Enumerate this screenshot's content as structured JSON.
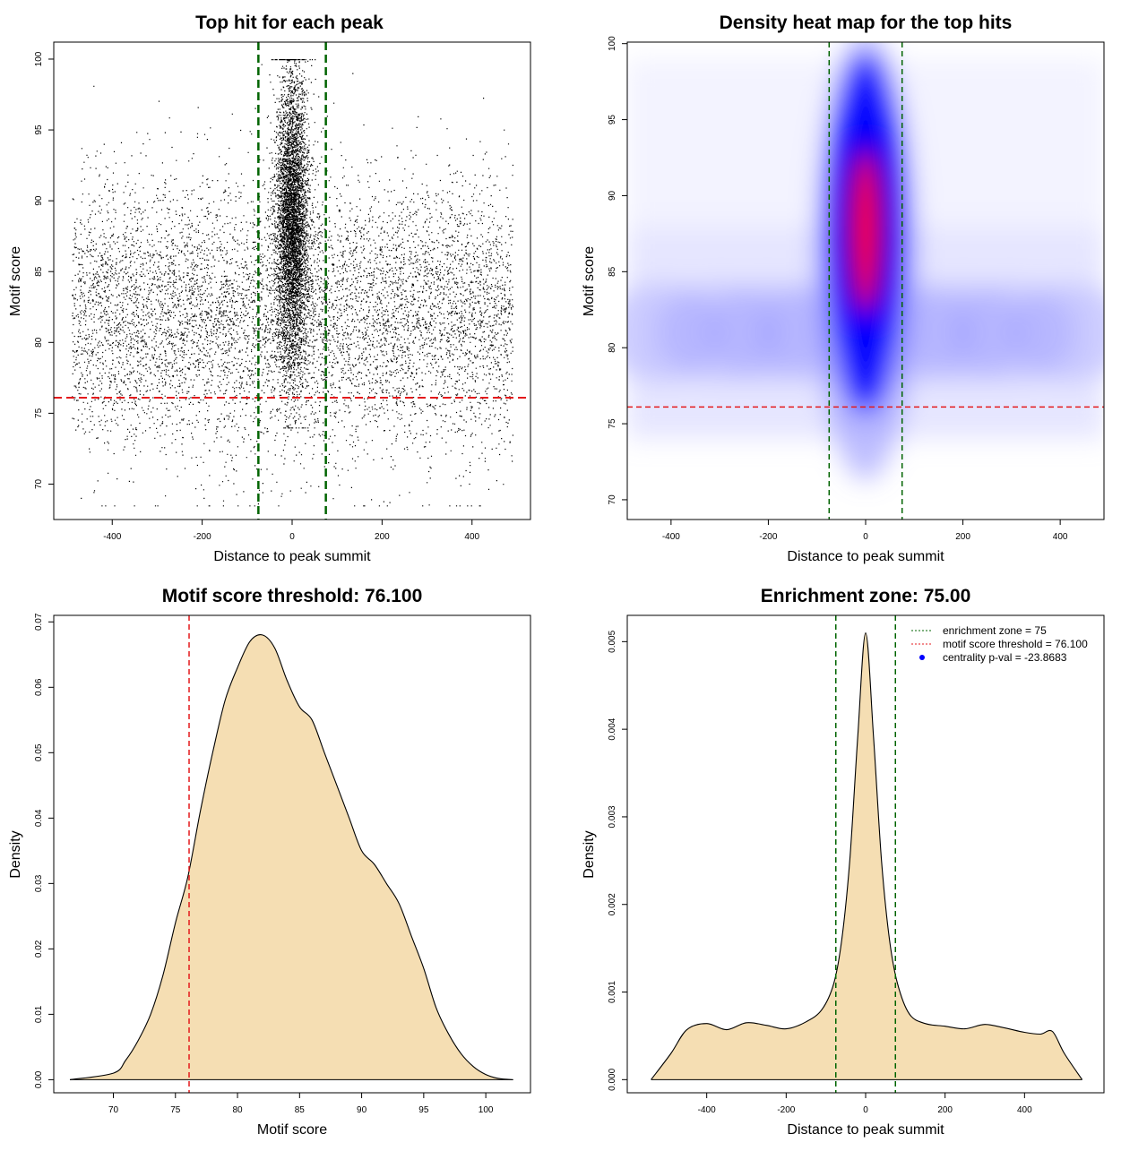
{
  "colors": {
    "threshold": "#e41a1c",
    "zone": "#006400",
    "fill": "#f5deb3",
    "heat_low": "#ffffff",
    "heat_mid": "#0000ff",
    "heat_high": "#ff0000",
    "point": "#000000",
    "legend_point": "#0000ff"
  },
  "chart_data": [
    {
      "id": "scatter",
      "type": "scatter",
      "title": "Top hit for each peak",
      "xlabel": "Distance to peak summit",
      "ylabel": "Motif score",
      "xlim": [
        -530,
        530
      ],
      "ylim": [
        67.5,
        101.2
      ],
      "xticks": [
        -400,
        -200,
        0,
        200,
        400
      ],
      "yticks": [
        70,
        75,
        80,
        85,
        90,
        95,
        100
      ],
      "threshold": 76.1,
      "zone": [
        -75,
        75
      ],
      "n_background_points": 7500,
      "n_central_points": 5200,
      "x_range": [
        -490,
        490
      ],
      "background_score_mean": 82,
      "background_score_sd": 4.7,
      "central_score_mean": 88.5,
      "central_score_sd": 5.2
    },
    {
      "id": "heatmap",
      "type": "heatmap",
      "title": "Density heat map for the top hits",
      "xlabel": "Distance to peak summit",
      "ylabel": "Motif score",
      "xlim": [
        -490,
        490
      ],
      "ylim": [
        68.7,
        100.1
      ],
      "xticks": [
        -400,
        -200,
        0,
        200,
        400
      ],
      "yticks": [
        70,
        75,
        80,
        85,
        90,
        95,
        100
      ],
      "threshold": 76.1,
      "zone": [
        -75,
        75
      ],
      "central_peak": {
        "x": 0,
        "y": 87.5,
        "x_sd": 25,
        "y_sd": 5.5
      },
      "background_band": {
        "y": 81,
        "y_sd": 3
      }
    },
    {
      "id": "score_density",
      "type": "area",
      "title": "Motif score threshold: 76.100",
      "xlabel": "Motif score",
      "ylabel": "Density",
      "xlim": [
        65.2,
        103.6
      ],
      "ylim": [
        -0.002,
        0.071
      ],
      "xticks": [
        70,
        75,
        80,
        85,
        90,
        95,
        100
      ],
      "yticks": [
        0.0,
        0.01,
        0.02,
        0.03,
        0.04,
        0.05,
        0.06,
        0.07
      ],
      "ytick_labels": [
        "0.00",
        "0.01",
        "0.02",
        "0.03",
        "0.04",
        "0.05",
        "0.06",
        "0.07"
      ],
      "threshold": 76.1,
      "x": [
        66.5,
        70,
        71,
        72,
        73,
        74,
        75,
        76,
        77,
        78,
        79,
        80,
        81,
        82,
        83,
        84,
        85,
        86,
        87,
        88,
        89,
        90,
        91,
        92,
        93,
        94,
        95,
        96,
        97,
        98,
        99,
        100,
        101,
        102.2
      ],
      "y": [
        0.0,
        0.001,
        0.003,
        0.006,
        0.01,
        0.016,
        0.024,
        0.031,
        0.041,
        0.05,
        0.058,
        0.063,
        0.067,
        0.068,
        0.066,
        0.061,
        0.057,
        0.055,
        0.05,
        0.045,
        0.04,
        0.035,
        0.033,
        0.03,
        0.027,
        0.022,
        0.017,
        0.011,
        0.007,
        0.004,
        0.002,
        0.0008,
        0.0002,
        0.0
      ]
    },
    {
      "id": "distance_density",
      "type": "area",
      "title": "Enrichment zone: 75.00",
      "xlabel": "Distance to peak summit",
      "ylabel": "Density",
      "xlim": [
        -600,
        600
      ],
      "ylim": [
        -0.00015,
        0.0053
      ],
      "xticks": [
        -400,
        -200,
        0,
        200,
        400
      ],
      "yticks": [
        0.0,
        0.001,
        0.002,
        0.003,
        0.004,
        0.005
      ],
      "ytick_labels": [
        "0.000",
        "0.001",
        "0.002",
        "0.003",
        "0.004",
        "0.005"
      ],
      "zone": [
        -75,
        75
      ],
      "x": [
        -540,
        -490,
        -450,
        -400,
        -350,
        -300,
        -250,
        -200,
        -150,
        -110,
        -80,
        -60,
        -40,
        -20,
        0,
        20,
        40,
        60,
        80,
        110,
        150,
        200,
        250,
        300,
        350,
        400,
        440,
        470,
        500,
        545
      ],
      "y": [
        0.0,
        0.0003,
        0.00057,
        0.00064,
        0.00057,
        0.00065,
        0.00062,
        0.00058,
        0.00066,
        0.0008,
        0.0011,
        0.0016,
        0.0025,
        0.0039,
        0.0051,
        0.0039,
        0.0025,
        0.0016,
        0.0011,
        0.00075,
        0.00064,
        0.00061,
        0.00058,
        0.00063,
        0.00059,
        0.00054,
        0.00052,
        0.00055,
        0.0003,
        0.0
      ],
      "legend": [
        {
          "label": "enrichment zone = 75",
          "kind": "line",
          "color_key": "zone"
        },
        {
          "label": "motif score threshold = 76.100",
          "kind": "line",
          "color_key": "threshold"
        },
        {
          "label": "centrality p-val = -23.8683",
          "kind": "point",
          "color_key": "legend_point"
        }
      ],
      "legend_position": "top-right"
    }
  ]
}
